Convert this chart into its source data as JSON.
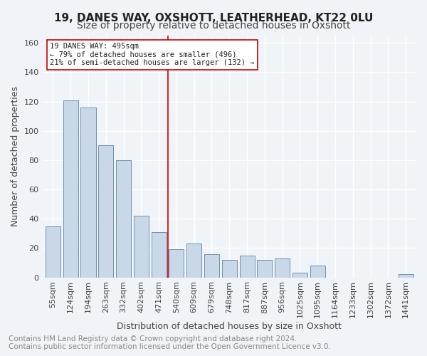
{
  "title_line1": "19, DANES WAY, OXSHOTT, LEATHERHEAD, KT22 0LU",
  "title_line2": "Size of property relative to detached houses in Oxshott",
  "xlabel": "Distribution of detached houses by size in Oxshott",
  "ylabel": "Number of detached properties",
  "categories": [
    "55sqm",
    "124sqm",
    "194sqm",
    "263sqm",
    "332sqm",
    "402sqm",
    "471sqm",
    "540sqm",
    "609sqm",
    "679sqm",
    "748sqm",
    "817sqm",
    "887sqm",
    "956sqm",
    "1025sqm",
    "1095sqm",
    "1164sqm",
    "1233sqm",
    "1302sqm",
    "1372sqm",
    "1441sqm"
  ],
  "values": [
    35,
    121,
    116,
    90,
    80,
    42,
    31,
    19,
    23,
    16,
    12,
    15,
    12,
    13,
    3,
    8,
    0,
    0,
    0,
    0,
    2
  ],
  "bar_color": "#c8d8e8",
  "bar_edge_color": "#7090b0",
  "vline_x": 6.5,
  "vline_color": "#cc0000",
  "annotation_line1": "19 DANES WAY: 495sqm",
  "annotation_line2": "← 79% of detached houses are smaller (496)",
  "annotation_line3": "21% of semi-detached houses are larger (132) →",
  "annotation_box_color": "#ffffff",
  "annotation_box_edge": "#cc0000",
  "ylim": [
    0,
    165
  ],
  "yticks": [
    0,
    20,
    40,
    60,
    80,
    100,
    120,
    140,
    160
  ],
  "footer_line1": "Contains HM Land Registry data © Crown copyright and database right 2024.",
  "footer_line2": "Contains public sector information licensed under the Open Government Licence v3.0.",
  "background_color": "#f0f4f8",
  "grid_color": "#ffffff",
  "title1_fontsize": 11,
  "title2_fontsize": 10,
  "axis_label_fontsize": 9,
  "tick_fontsize": 8,
  "footer_fontsize": 7.5
}
